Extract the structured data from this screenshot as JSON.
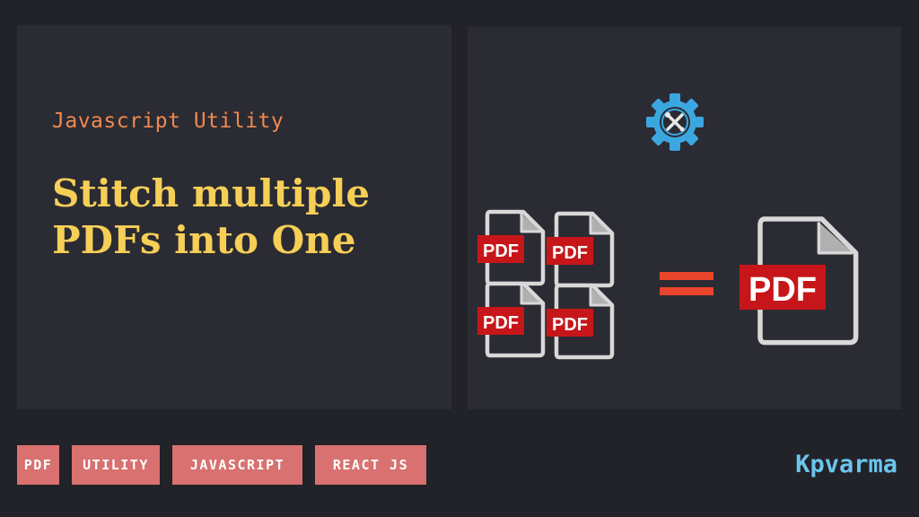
{
  "header": {
    "subtitle": "Javascript Utility",
    "title": "Stitch multiple PDFs into One"
  },
  "illustration": {
    "icon": "gear-tools-icon",
    "file_label": "PDF",
    "equals_icon": "equals-icon"
  },
  "tags": [
    {
      "label": "PDF"
    },
    {
      "label": "UTILITY"
    },
    {
      "label": "JAVASCRIPT"
    },
    {
      "label": "REACT JS"
    }
  ],
  "brand": "Kpvarma",
  "colors": {
    "background": "#222229",
    "panel": "#2b2b33",
    "subtitle": "#f0894f",
    "title": "#f6cf57",
    "tag": "#d87170",
    "brand": "#6cc5ec",
    "pdf_red": "#c7161a",
    "equals": "#e8452c",
    "gear": "#3ba7e0"
  }
}
